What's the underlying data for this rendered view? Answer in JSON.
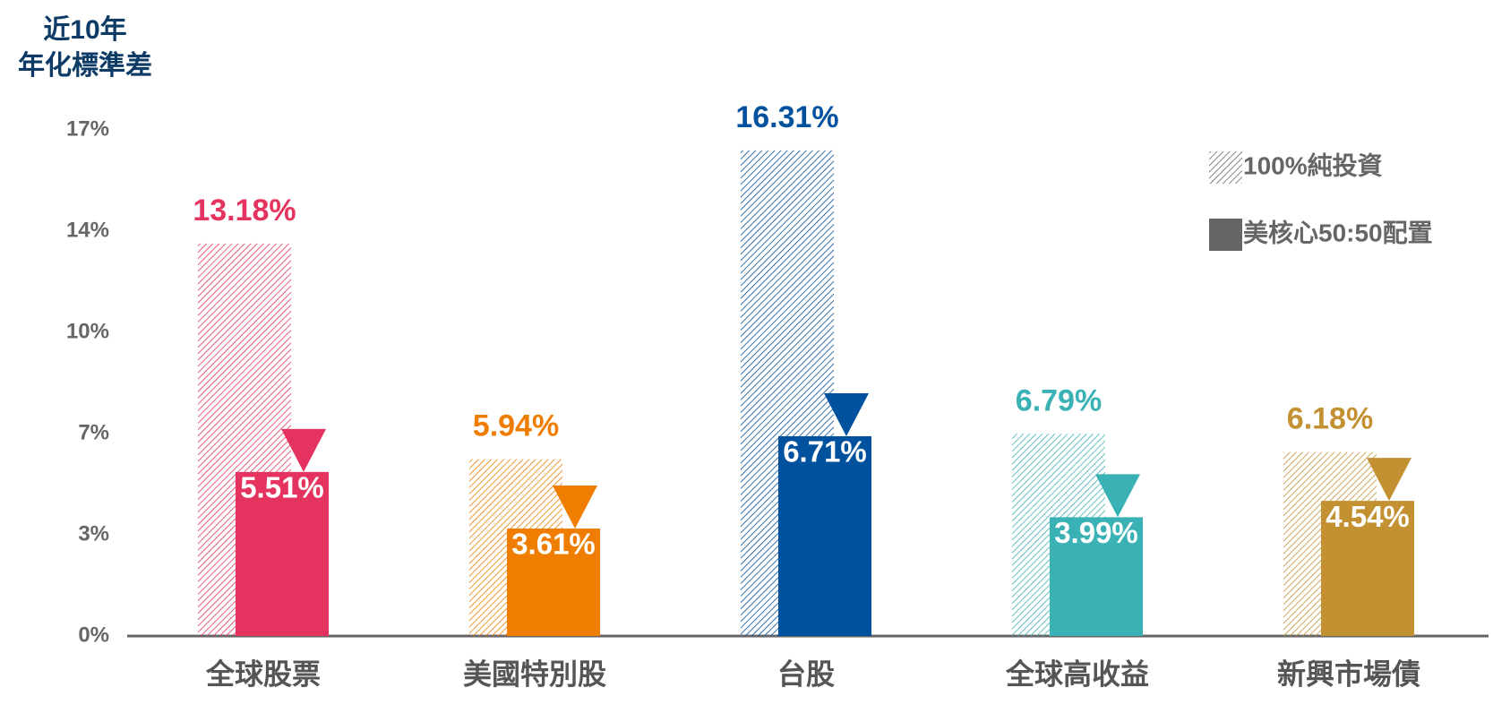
{
  "chart_data": {
    "type": "bar",
    "y_label_lines": [
      "近10年",
      "年化標準差"
    ],
    "categories": [
      "全球股票",
      "美國特別股",
      "台股",
      "全球高收益",
      "新興市場債"
    ],
    "category_colors": [
      "#e5335f",
      "#ef7d00",
      "#00519e",
      "#39b1b5",
      "#c39132"
    ],
    "series": [
      {
        "name": "100%純投資",
        "color": "#666666",
        "hatched": true,
        "values": [
          13.18,
          5.94,
          16.31,
          6.79,
          6.18
        ],
        "value_labels": [
          "13.18%",
          "5.94%",
          "16.31%",
          "6.79%",
          "6.18%"
        ]
      },
      {
        "name": "美核心50:50配置",
        "color": "#666666",
        "hatched": false,
        "values": [
          5.51,
          3.61,
          6.71,
          3.99,
          4.54
        ],
        "value_labels": [
          "5.51%",
          "3.61%",
          "6.71%",
          "3.99%",
          "4.54%"
        ]
      }
    ],
    "ylim": [
      0,
      17
    ],
    "yticks": [
      {
        "value": 0,
        "label": "0%"
      },
      {
        "value": 3.4,
        "label": "3%"
      },
      {
        "value": 6.8,
        "label": "7%"
      },
      {
        "value": 10.2,
        "label": "10%"
      },
      {
        "value": 13.6,
        "label": "14%"
      },
      {
        "value": 17,
        "label": "17%"
      }
    ],
    "grid": false,
    "legend": "upper right"
  }
}
